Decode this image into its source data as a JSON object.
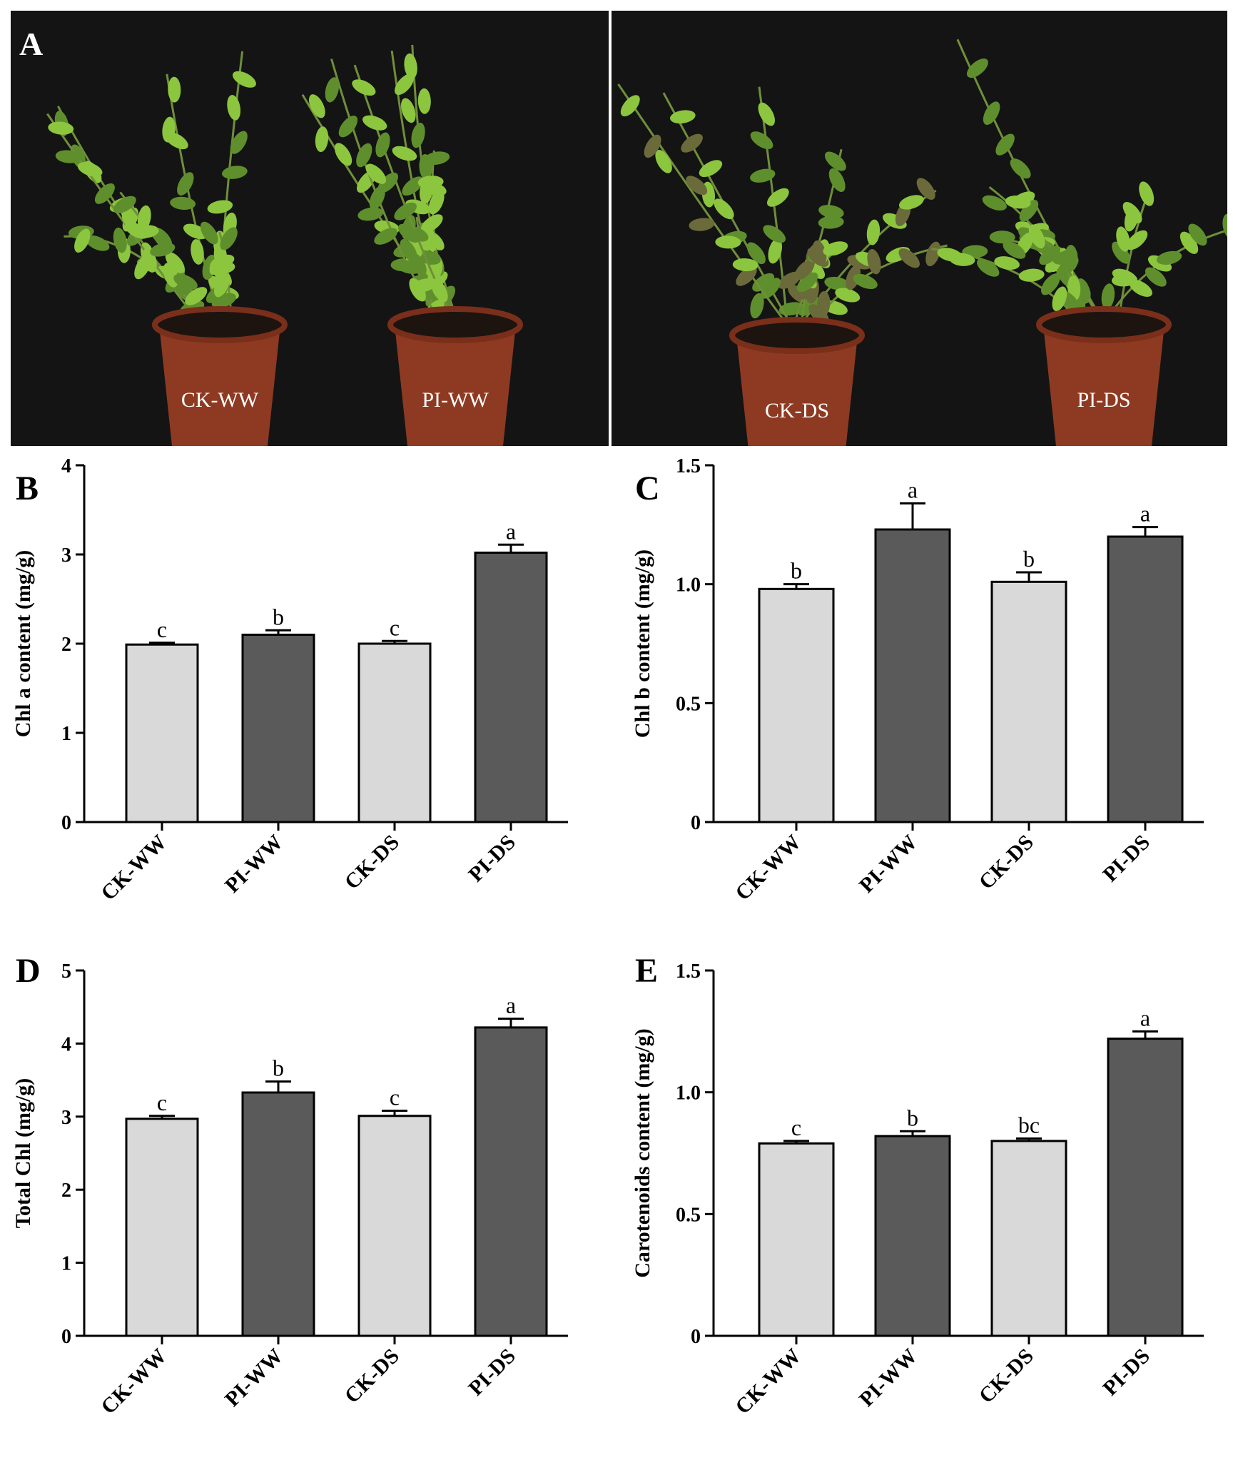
{
  "photo": {
    "label": "A",
    "pot_labels": [
      "CK-WW",
      "PI-WW",
      "CK-DS",
      "PI-DS"
    ]
  },
  "colors": {
    "ck_bar": "#d9d9d9",
    "pi_bar": "#5a5a5a",
    "background_photo": "#151515",
    "pot": "#8e3a22",
    "leaf": "#8cc63f",
    "leaf_dark": "#5f8f2d"
  },
  "chart_data": [
    {
      "panel": "B",
      "type": "bar",
      "categories": [
        "CK-WW",
        "PI-WW",
        "CK-DS",
        "PI-DS"
      ],
      "values": [
        1.99,
        2.1,
        2.0,
        3.02
      ],
      "errors": [
        0.02,
        0.05,
        0.03,
        0.09
      ],
      "sig_letters": [
        "c",
        "b",
        "c",
        "a"
      ],
      "ylabel": "Chl a content (mg/g)",
      "ylim": [
        0,
        4
      ],
      "yticks": [
        "0",
        "1",
        "2",
        "3",
        "4"
      ],
      "ytick_values": [
        0,
        1,
        2,
        3,
        4
      ]
    },
    {
      "panel": "C",
      "type": "bar",
      "categories": [
        "CK-WW",
        "PI-WW",
        "CK-DS",
        "PI-DS"
      ],
      "values": [
        0.98,
        1.23,
        1.01,
        1.2
      ],
      "errors": [
        0.02,
        0.11,
        0.04,
        0.04
      ],
      "sig_letters": [
        "b",
        "a",
        "b",
        "a"
      ],
      "ylabel": "Chl b content (mg/g)",
      "ylim": [
        0,
        1.5
      ],
      "yticks": [
        "0",
        "0.5",
        "1.0",
        "1.5"
      ],
      "ytick_values": [
        0,
        0.5,
        1.0,
        1.5
      ]
    },
    {
      "panel": "D",
      "type": "bar",
      "categories": [
        "CK-WW",
        "PI-WW",
        "CK-DS",
        "PI-DS"
      ],
      "values": [
        2.97,
        3.33,
        3.01,
        4.22
      ],
      "errors": [
        0.04,
        0.15,
        0.07,
        0.12
      ],
      "sig_letters": [
        "c",
        "b",
        "c",
        "a"
      ],
      "ylabel": "Total Chl (mg/g)",
      "ylim": [
        0,
        5
      ],
      "yticks": [
        "0",
        "1",
        "2",
        "3",
        "4",
        "5"
      ],
      "ytick_values": [
        0,
        1,
        2,
        3,
        4,
        5
      ]
    },
    {
      "panel": "E",
      "type": "bar",
      "categories": [
        "CK-WW",
        "PI-WW",
        "CK-DS",
        "PI-DS"
      ],
      "values": [
        0.79,
        0.82,
        0.8,
        1.22
      ],
      "errors": [
        0.01,
        0.02,
        0.01,
        0.03
      ],
      "sig_letters": [
        "c",
        "b",
        "bc",
        "a"
      ],
      "ylabel": "Carotenoids content (mg/g)",
      "ylim": [
        0,
        1.5
      ],
      "yticks": [
        "0",
        "0.5",
        "1.0",
        "1.5"
      ],
      "ytick_values": [
        0,
        0.5,
        1.0,
        1.5
      ]
    }
  ]
}
